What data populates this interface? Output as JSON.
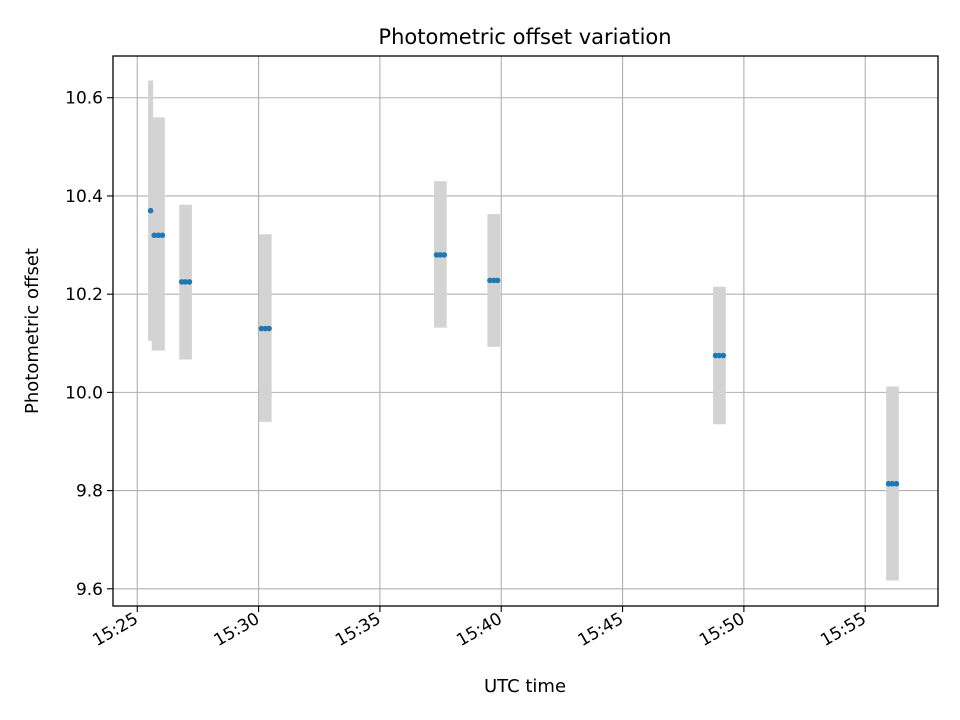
{
  "chart_data": {
    "type": "scatter",
    "title": "Photometric offset variation",
    "xlabel": "UTC time",
    "ylabel": "Photometric offset",
    "xlim": [
      "15:24:00",
      "15:58:00"
    ],
    "ylim": [
      9.565,
      10.685
    ],
    "x_ticks": [
      "15:25",
      "15:30",
      "15:35",
      "15:40",
      "15:45",
      "15:50",
      "15:55"
    ],
    "y_ticks": [
      "9.6",
      "9.8",
      "10.0",
      "10.2",
      "10.4",
      "10.6"
    ],
    "grid": true,
    "colors": {
      "point": "#1f77b4",
      "error_band": "#d3d3d3",
      "grid": "#b0b0b0"
    },
    "series": [
      {
        "points": [
          {
            "time": "15:25:33",
            "y": 10.37,
            "ylow": 10.105,
            "yhigh": 10.635
          },
          {
            "time": "15:25:42",
            "y": 10.32,
            "ylow": 10.085,
            "yhigh": 10.56
          },
          {
            "time": "15:25:52",
            "y": 10.32,
            "ylow": 10.085,
            "yhigh": 10.56
          },
          {
            "time": "15:26:02",
            "y": 10.32,
            "ylow": 10.085,
            "yhigh": 10.56
          },
          {
            "time": "15:26:50",
            "y": 10.225,
            "ylow": 10.067,
            "yhigh": 10.382
          },
          {
            "time": "15:26:59",
            "y": 10.225,
            "ylow": 10.067,
            "yhigh": 10.382
          },
          {
            "time": "15:27:09",
            "y": 10.225,
            "ylow": 10.067,
            "yhigh": 10.382
          },
          {
            "time": "15:30:07",
            "y": 10.13,
            "ylow": 9.94,
            "yhigh": 10.322
          },
          {
            "time": "15:30:17",
            "y": 10.13,
            "ylow": 9.94,
            "yhigh": 10.322
          },
          {
            "time": "15:30:26",
            "y": 10.13,
            "ylow": 9.94,
            "yhigh": 10.322
          },
          {
            "time": "15:37:20",
            "y": 10.28,
            "ylow": 10.132,
            "yhigh": 10.43
          },
          {
            "time": "15:37:29",
            "y": 10.28,
            "ylow": 10.132,
            "yhigh": 10.43
          },
          {
            "time": "15:37:39",
            "y": 10.28,
            "ylow": 10.132,
            "yhigh": 10.43
          },
          {
            "time": "15:39:32",
            "y": 10.228,
            "ylow": 10.093,
            "yhigh": 10.363
          },
          {
            "time": "15:39:42",
            "y": 10.228,
            "ylow": 10.093,
            "yhigh": 10.363
          },
          {
            "time": "15:39:51",
            "y": 10.228,
            "ylow": 10.093,
            "yhigh": 10.363
          },
          {
            "time": "15:48:50",
            "y": 10.075,
            "ylow": 9.935,
            "yhigh": 10.215
          },
          {
            "time": "15:48:59",
            "y": 10.075,
            "ylow": 9.935,
            "yhigh": 10.215
          },
          {
            "time": "15:49:09",
            "y": 10.075,
            "ylow": 9.935,
            "yhigh": 10.215
          },
          {
            "time": "15:55:58",
            "y": 9.814,
            "ylow": 9.617,
            "yhigh": 10.012
          },
          {
            "time": "15:56:07",
            "y": 9.814,
            "ylow": 9.617,
            "yhigh": 10.012
          },
          {
            "time": "15:56:17",
            "y": 9.814,
            "ylow": 9.617,
            "yhigh": 10.012
          }
        ]
      }
    ]
  }
}
